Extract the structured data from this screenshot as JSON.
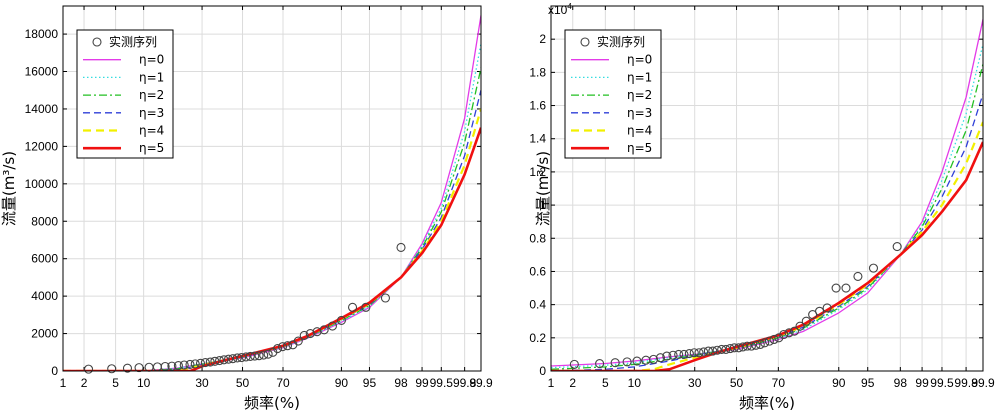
{
  "chart_data": [
    {
      "type": "line",
      "title": "",
      "xlabel": "频率(%)",
      "ylabel": "流量(m³/s)",
      "x_scale": "normal-probability",
      "x_ticks": [
        1,
        2,
        5,
        10,
        30,
        50,
        70,
        90,
        95,
        98,
        99,
        99.5,
        99.8,
        99.9
      ],
      "x_tick_labels": [
        "1",
        "2",
        "5",
        "10",
        "30",
        "50",
        "70",
        "90",
        "95",
        "98",
        "99",
        "99.5",
        "99.8",
        "99.9"
      ],
      "ylim": [
        0,
        19500
      ],
      "y_ticks": [
        0,
        2000,
        4000,
        6000,
        8000,
        10000,
        12000,
        14000,
        16000,
        18000
      ],
      "y_tick_labels": [
        "0",
        "2000",
        "4000",
        "6000",
        "8000",
        "10000",
        "12000",
        "14000",
        "16000",
        "18000"
      ],
      "y_multiplier": "",
      "grid": true,
      "legend_position": "top-left",
      "observed": {
        "name": "实测序列",
        "x": [
          2.3,
          4.5,
          6.8,
          9.0,
          11.3,
          13.5,
          15.8,
          18.0,
          20.3,
          22.5,
          24.8,
          27.0,
          29.3,
          31.5,
          33.8,
          36.0,
          38.3,
          40.5,
          42.8,
          45.0,
          47.3,
          49.5,
          51.8,
          54.0,
          56.3,
          58.5,
          60.8,
          63.0,
          65.3,
          67.5,
          69.8,
          72.0,
          74.3,
          76.5,
          78.8,
          81.0,
          83.3,
          85.5,
          87.8,
          90.0,
          92.3,
          94.5,
          96.8,
          98.0
        ],
        "y": [
          100,
          120,
          150,
          180,
          200,
          220,
          240,
          260,
          290,
          320,
          350,
          380,
          410,
          450,
          480,
          520,
          560,
          600,
          630,
          660,
          700,
          720,
          750,
          780,
          800,
          820,
          850,
          900,
          1000,
          1200,
          1300,
          1350,
          1400,
          1600,
          1900,
          2000,
          2100,
          2200,
          2400,
          2700,
          3400,
          3400,
          3900,
          6600
        ]
      },
      "series": [
        {
          "name": "η=0",
          "color": "#e33be8",
          "style": "solid",
          "width": 1.3,
          "x": [
            1,
            5,
            10,
            20,
            30,
            50,
            70,
            80,
            90,
            95,
            98,
            99,
            99.5,
            99.8,
            99.9
          ],
          "y": [
            0,
            0,
            0,
            160,
            380,
            700,
            1250,
            1750,
            2600,
            3400,
            5000,
            6800,
            9000,
            13500,
            19000
          ]
        },
        {
          "name": "η=1",
          "color": "#35dde0",
          "style": "dotted",
          "width": 1.3,
          "x": [
            1,
            5,
            10,
            20,
            30,
            50,
            70,
            80,
            90,
            95,
            98,
            99,
            99.5,
            99.8,
            99.9
          ],
          "y": [
            0,
            0,
            0,
            150,
            380,
            720,
            1270,
            1780,
            2650,
            3450,
            5000,
            6700,
            8700,
            12800,
            17500
          ]
        },
        {
          "name": "η=2",
          "color": "#22bf22",
          "style": "dashdot",
          "width": 1.3,
          "x": [
            1,
            5,
            10,
            20,
            30,
            50,
            70,
            80,
            90,
            95,
            98,
            99,
            99.5,
            99.8,
            99.9
          ],
          "y": [
            0,
            0,
            0,
            120,
            370,
            740,
            1290,
            1800,
            2700,
            3500,
            5000,
            6600,
            8500,
            12200,
            16200
          ]
        },
        {
          "name": "η=3",
          "color": "#2f3fd8",
          "style": "dashed",
          "width": 1.3,
          "x": [
            1,
            10,
            20,
            25,
            30,
            50,
            70,
            80,
            90,
            95,
            98,
            99,
            99.5,
            99.8,
            99.9
          ],
          "y": [
            0,
            0,
            60,
            200,
            350,
            760,
            1310,
            1820,
            2740,
            3560,
            5000,
            6500,
            8200,
            11500,
            15000
          ]
        },
        {
          "name": "η=4",
          "color": "#f2f000",
          "style": "dashed-thick",
          "width": 2.2,
          "x": [
            1,
            20,
            25,
            30,
            50,
            70,
            80,
            90,
            95,
            98,
            99,
            99.5,
            99.8,
            99.9
          ],
          "y": [
            0,
            0,
            150,
            320,
            780,
            1330,
            1850,
            2780,
            3600,
            5000,
            6400,
            8000,
            11000,
            14000
          ]
        },
        {
          "name": "η=5",
          "color": "#f01010",
          "style": "solid-thick",
          "width": 2.6,
          "x": [
            1,
            25,
            30,
            40,
            50,
            70,
            80,
            90,
            95,
            98,
            99,
            99.5,
            99.8,
            99.9
          ],
          "y": [
            0,
            0,
            250,
            550,
            800,
            1350,
            1870,
            2820,
            3650,
            5000,
            6300,
            7800,
            10500,
            13000
          ]
        }
      ]
    },
    {
      "type": "line",
      "title": "",
      "xlabel": "频率(%)",
      "ylabel": "流量(m³/s)",
      "x_scale": "normal-probability",
      "x_ticks": [
        1,
        2,
        5,
        10,
        30,
        50,
        70,
        90,
        95,
        98,
        99,
        99.5,
        99.8,
        99.9
      ],
      "x_tick_labels": [
        "1",
        "2",
        "5",
        "10",
        "30",
        "50",
        "70",
        "90",
        "95",
        "98",
        "99",
        "99.5",
        "99.8",
        "99.9"
      ],
      "ylim": [
        0,
        2.2
      ],
      "y_ticks": [
        0,
        0.2,
        0.4,
        0.6,
        0.8,
        1.0,
        1.2,
        1.4,
        1.6,
        1.8,
        2.0
      ],
      "y_tick_labels": [
        "0",
        "0.2",
        "0.4",
        "0.6",
        "0.8",
        "1",
        "1.2",
        "1.4",
        "1.6",
        "1.8",
        "2"
      ],
      "y_multiplier": "x10",
      "y_multiplier_exp": "4",
      "grid": true,
      "legend_position": "top-left",
      "observed": {
        "name": "实测序列",
        "x": [
          2.1,
          4.3,
          6.4,
          8.5,
          10.6,
          12.8,
          14.9,
          17.0,
          19.1,
          21.3,
          23.4,
          25.5,
          27.7,
          29.8,
          31.9,
          34.0,
          36.2,
          38.3,
          40.4,
          42.6,
          44.7,
          46.8,
          48.9,
          51.1,
          53.2,
          55.3,
          57.4,
          59.6,
          61.7,
          63.8,
          66.0,
          68.1,
          70.2,
          72.3,
          74.5,
          76.6,
          78.7,
          80.9,
          83.0,
          85.1,
          87.2,
          89.4,
          91.5,
          93.6,
          95.7,
          97.8
        ],
        "y": [
          0.04,
          0.045,
          0.05,
          0.055,
          0.06,
          0.065,
          0.07,
          0.08,
          0.09,
          0.095,
          0.1,
          0.1,
          0.105,
          0.11,
          0.11,
          0.115,
          0.12,
          0.12,
          0.125,
          0.13,
          0.13,
          0.135,
          0.14,
          0.14,
          0.145,
          0.15,
          0.15,
          0.155,
          0.16,
          0.17,
          0.18,
          0.19,
          0.2,
          0.22,
          0.23,
          0.24,
          0.27,
          0.3,
          0.34,
          0.36,
          0.38,
          0.5,
          0.5,
          0.57,
          0.62,
          0.75
        ]
      },
      "series": [
        {
          "name": "η=0",
          "color": "#e33be8",
          "style": "solid",
          "width": 1.3,
          "x": [
            1,
            5,
            10,
            20,
            30,
            50,
            70,
            80,
            90,
            95,
            98,
            99,
            99.5,
            99.8,
            99.9
          ],
          "y": [
            0.03,
            0.045,
            0.06,
            0.085,
            0.1,
            0.13,
            0.19,
            0.24,
            0.35,
            0.47,
            0.7,
            0.9,
            1.2,
            1.65,
            2.12
          ]
        },
        {
          "name": "η=1",
          "color": "#35dde0",
          "style": "dotted",
          "width": 1.3,
          "x": [
            1,
            5,
            10,
            20,
            30,
            50,
            70,
            80,
            90,
            95,
            98,
            99,
            99.5,
            99.8,
            99.9
          ],
          "y": [
            0.02,
            0.035,
            0.05,
            0.08,
            0.1,
            0.135,
            0.195,
            0.25,
            0.37,
            0.49,
            0.7,
            0.88,
            1.15,
            1.55,
            1.97
          ]
        },
        {
          "name": "η=2",
          "color": "#22bf22",
          "style": "dashdot",
          "width": 1.3,
          "x": [
            1,
            5,
            10,
            20,
            30,
            50,
            70,
            80,
            90,
            95,
            98,
            99,
            99.5,
            99.8,
            99.9
          ],
          "y": [
            0.01,
            0.025,
            0.04,
            0.07,
            0.095,
            0.135,
            0.2,
            0.26,
            0.38,
            0.5,
            0.7,
            0.87,
            1.1,
            1.45,
            1.85
          ]
        },
        {
          "name": "η=3",
          "color": "#2f3fd8",
          "style": "dashed",
          "width": 1.3,
          "x": [
            1,
            5,
            10,
            20,
            30,
            50,
            70,
            80,
            90,
            95,
            98,
            99,
            99.5,
            99.8,
            99.9
          ],
          "y": [
            0,
            0.01,
            0.025,
            0.06,
            0.09,
            0.14,
            0.205,
            0.265,
            0.39,
            0.51,
            0.7,
            0.85,
            1.05,
            1.35,
            1.67
          ]
        },
        {
          "name": "η=4",
          "color": "#f2f000",
          "style": "dashed-thick",
          "width": 2.2,
          "x": [
            1,
            10,
            15,
            20,
            30,
            50,
            70,
            80,
            90,
            95,
            98,
            99,
            99.5,
            99.8,
            99.9
          ],
          "y": [
            0,
            0,
            0.01,
            0.04,
            0.08,
            0.14,
            0.21,
            0.27,
            0.4,
            0.52,
            0.7,
            0.84,
            1.0,
            1.25,
            1.5
          ]
        },
        {
          "name": "η=5",
          "color": "#f01010",
          "style": "solid-thick",
          "width": 2.6,
          "x": [
            1,
            15,
            20,
            30,
            40,
            50,
            70,
            80,
            90,
            95,
            98,
            99,
            99.5,
            99.8,
            99.9
          ],
          "y": [
            0,
            0,
            0.01,
            0.065,
            0.11,
            0.145,
            0.215,
            0.28,
            0.41,
            0.53,
            0.7,
            0.82,
            0.96,
            1.15,
            1.38
          ]
        }
      ]
    }
  ]
}
